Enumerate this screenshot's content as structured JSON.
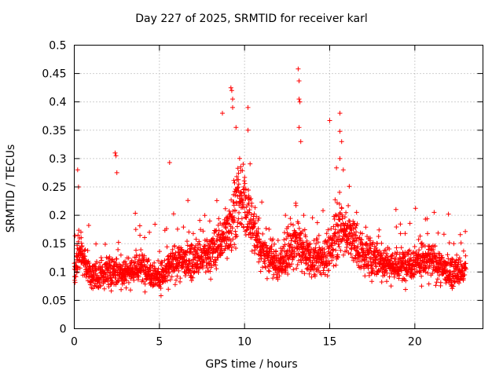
{
  "chart_data": {
    "type": "scatter",
    "title": "Day 227 of 2025, SRMTID for receiver karl",
    "xlabel": "GPS time / hours",
    "ylabel": "SRMTID / TECUs",
    "xlim": [
      0,
      24
    ],
    "ylim": [
      0,
      0.5
    ],
    "xticks": [
      0,
      5,
      10,
      15,
      20
    ],
    "yticks": [
      0,
      0.05,
      0.1,
      0.15,
      0.2,
      0.25,
      0.3,
      0.35,
      0.4,
      0.45,
      0.5
    ],
    "ytick_labels": [
      "0",
      "0.05",
      "0.1",
      "0.15",
      "0.2",
      "0.25",
      "0.3",
      "0.35",
      "0.4",
      "0.45",
      "0.5"
    ],
    "xtick_labels": [
      "0",
      "5",
      "10",
      "15",
      "20"
    ],
    "grid": true,
    "marker": "+",
    "color": "#ff0000",
    "x_range_data": [
      0,
      23
    ],
    "profile": [
      {
        "x": 0.0,
        "y": 0.1
      },
      {
        "x": 0.3,
        "y": 0.14
      },
      {
        "x": 0.6,
        "y": 0.12
      },
      {
        "x": 1.0,
        "y": 0.09
      },
      {
        "x": 2.0,
        "y": 0.1
      },
      {
        "x": 3.0,
        "y": 0.1
      },
      {
        "x": 4.0,
        "y": 0.11
      },
      {
        "x": 5.0,
        "y": 0.09
      },
      {
        "x": 6.0,
        "y": 0.12
      },
      {
        "x": 7.0,
        "y": 0.12
      },
      {
        "x": 8.0,
        "y": 0.13
      },
      {
        "x": 9.0,
        "y": 0.17
      },
      {
        "x": 9.5,
        "y": 0.22
      },
      {
        "x": 10.0,
        "y": 0.22
      },
      {
        "x": 10.5,
        "y": 0.18
      },
      {
        "x": 11.0,
        "y": 0.14
      },
      {
        "x": 12.0,
        "y": 0.11
      },
      {
        "x": 13.0,
        "y": 0.15
      },
      {
        "x": 14.0,
        "y": 0.12
      },
      {
        "x": 15.0,
        "y": 0.13
      },
      {
        "x": 15.5,
        "y": 0.18
      },
      {
        "x": 16.0,
        "y": 0.17
      },
      {
        "x": 17.0,
        "y": 0.13
      },
      {
        "x": 18.0,
        "y": 0.12
      },
      {
        "x": 19.0,
        "y": 0.11
      },
      {
        "x": 20.0,
        "y": 0.12
      },
      {
        "x": 21.0,
        "y": 0.12
      },
      {
        "x": 22.0,
        "y": 0.1
      },
      {
        "x": 23.0,
        "y": 0.1
      }
    ],
    "notable_points": [
      {
        "x": 0.2,
        "y": 0.28
      },
      {
        "x": 0.25,
        "y": 0.25
      },
      {
        "x": 2.4,
        "y": 0.31
      },
      {
        "x": 2.45,
        "y": 0.305
      },
      {
        "x": 2.5,
        "y": 0.275
      },
      {
        "x": 5.6,
        "y": 0.293
      },
      {
        "x": 8.7,
        "y": 0.38
      },
      {
        "x": 9.2,
        "y": 0.425
      },
      {
        "x": 9.25,
        "y": 0.42
      },
      {
        "x": 9.3,
        "y": 0.405
      },
      {
        "x": 9.3,
        "y": 0.39
      },
      {
        "x": 9.5,
        "y": 0.355
      },
      {
        "x": 10.2,
        "y": 0.39
      },
      {
        "x": 10.2,
        "y": 0.35
      },
      {
        "x": 13.15,
        "y": 0.458
      },
      {
        "x": 13.2,
        "y": 0.437
      },
      {
        "x": 13.2,
        "y": 0.405
      },
      {
        "x": 13.25,
        "y": 0.4
      },
      {
        "x": 13.2,
        "y": 0.355
      },
      {
        "x": 13.3,
        "y": 0.33
      },
      {
        "x": 15.0,
        "y": 0.367
      },
      {
        "x": 15.6,
        "y": 0.38
      },
      {
        "x": 15.6,
        "y": 0.348
      },
      {
        "x": 15.7,
        "y": 0.33
      },
      {
        "x": 15.6,
        "y": 0.3
      },
      {
        "x": 15.8,
        "y": 0.28
      }
    ],
    "point_count": 2600,
    "min_typical": 0.04
  }
}
